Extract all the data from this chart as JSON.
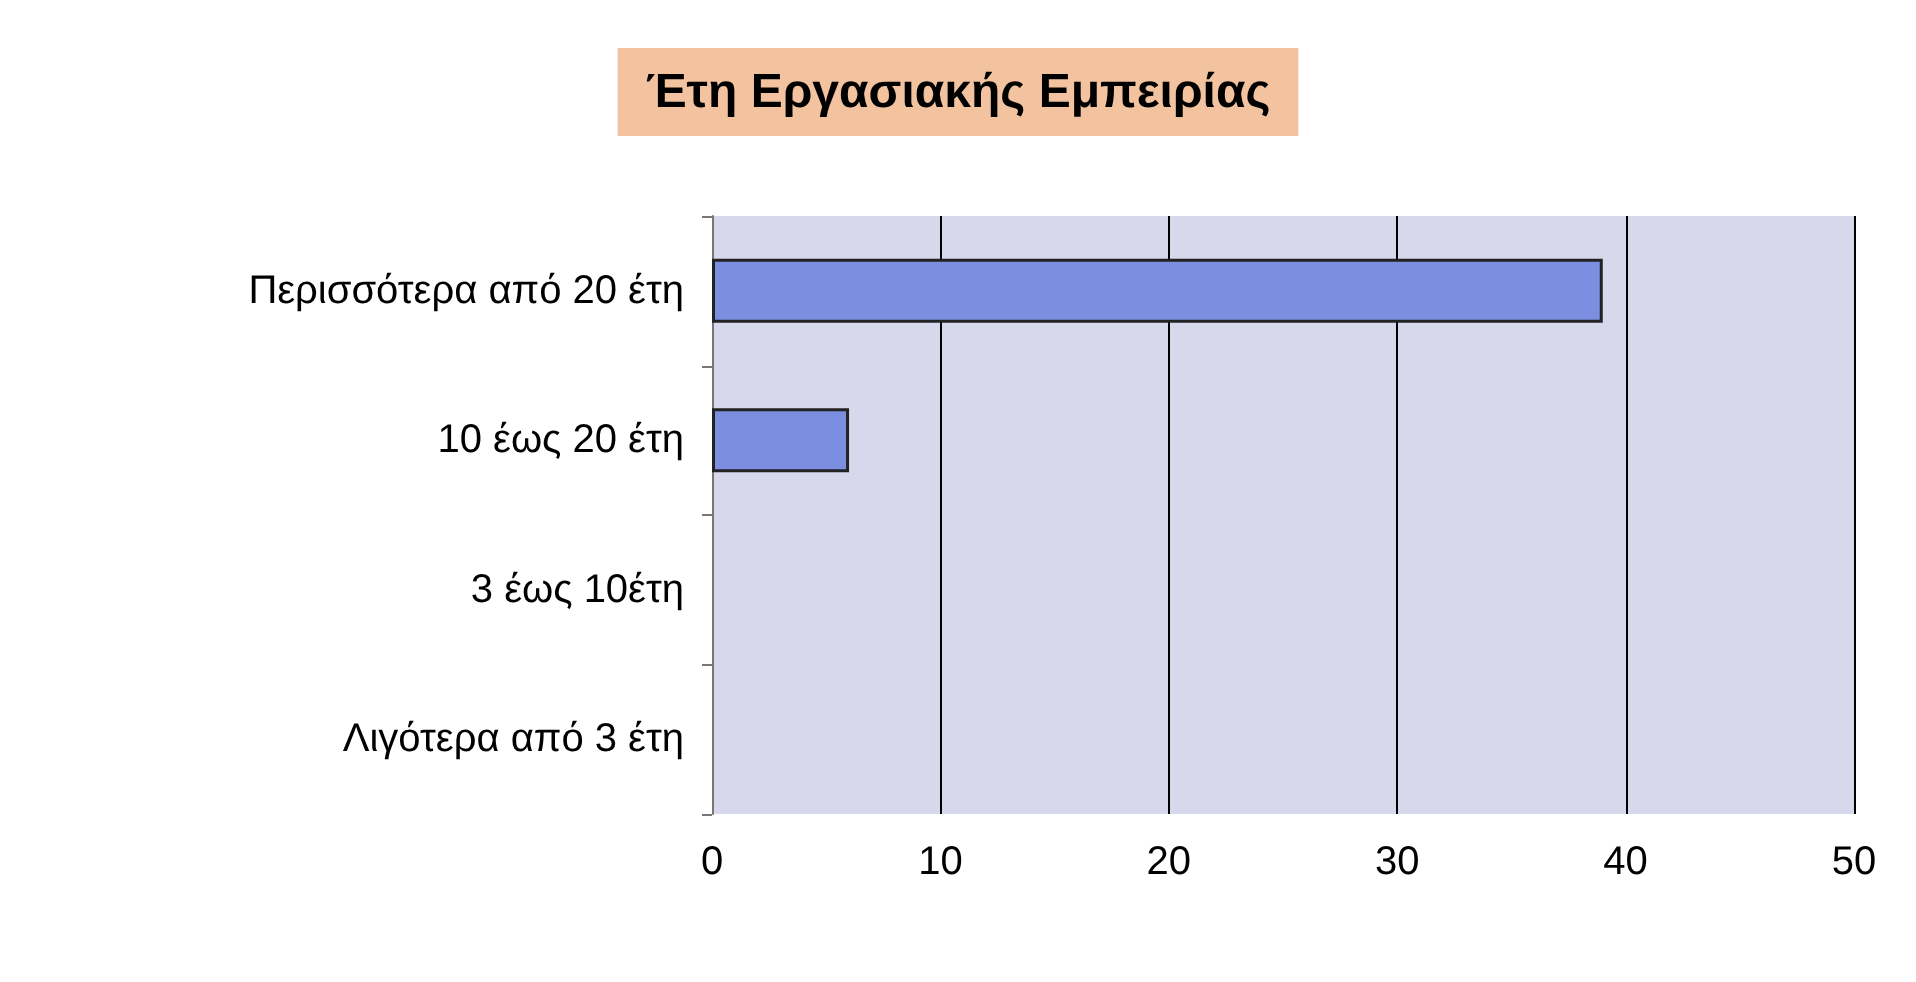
{
  "chart_data": {
    "type": "bar",
    "orientation": "horizontal",
    "title": "Έτη Εργασιακής Εμπειρίας",
    "categories": [
      "Περισσότερα από 20 έτη",
      "10 έως 20 έτη",
      "3 έως 10έτη",
      "Λιγότερα από 3 έτη"
    ],
    "values": [
      39,
      6,
      0,
      0
    ],
    "color": "#7b8ee0",
    "xlim": [
      0,
      50
    ],
    "xticks": [
      0,
      10,
      20,
      30,
      40,
      50
    ],
    "grid": "x"
  }
}
